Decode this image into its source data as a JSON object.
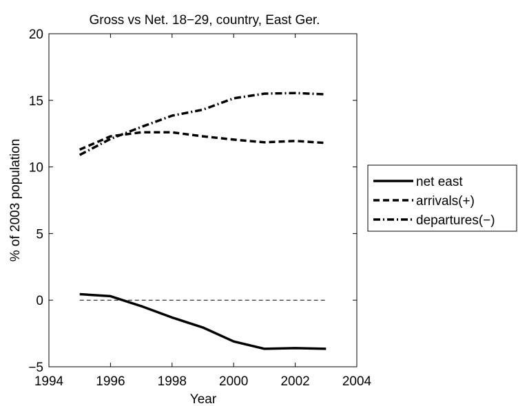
{
  "chart_data": {
    "type": "line",
    "title": "Gross vs Net. 18−29, country, East Ger.",
    "xlabel": "Year",
    "ylabel": "% of 2003 population",
    "xlim": [
      1994,
      2004
    ],
    "ylim": [
      -5,
      20
    ],
    "xticks": [
      "1994",
      "1996",
      "1998",
      "2000",
      "2002",
      "2004"
    ],
    "yticks": [
      "−5",
      "0",
      "5",
      "10",
      "15",
      "20"
    ],
    "grid": false,
    "legend_position": "outside-right",
    "x": [
      1995,
      1996,
      1997,
      1998,
      1999,
      2000,
      2001,
      2002,
      2003
    ],
    "series": [
      {
        "name": "net east",
        "style": "solid",
        "values": [
          0.45,
          0.3,
          -0.45,
          -1.3,
          -2.05,
          -3.1,
          -3.65,
          -3.6,
          -3.65
        ]
      },
      {
        "name": "arrivals(+)",
        "style": "dashed",
        "values": [
          11.3,
          12.3,
          12.6,
          12.6,
          12.3,
          12.05,
          11.85,
          11.95,
          11.8
        ]
      },
      {
        "name": "departures(−)",
        "style": "dashdot",
        "values": [
          10.9,
          12.1,
          13.0,
          13.85,
          14.3,
          15.15,
          15.5,
          15.55,
          15.45
        ]
      }
    ],
    "reference_line": {
      "y": 0,
      "x": [
        1995,
        2003
      ],
      "style": "thin-dashed"
    }
  }
}
